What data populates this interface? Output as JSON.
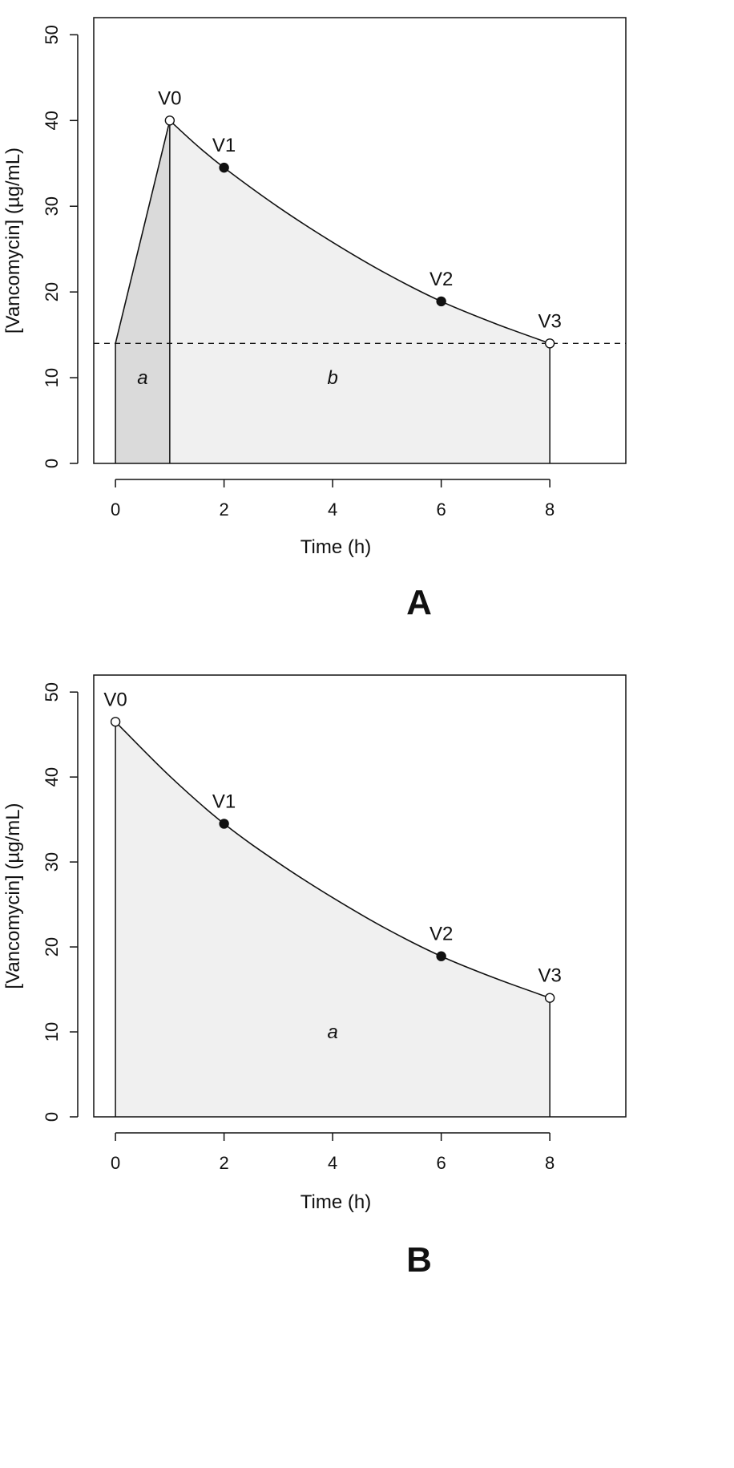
{
  "chart_data": [
    {
      "type": "area",
      "panel_label": "A",
      "xlabel": "Time (h)",
      "ylabel": "[Vancomycin] (µg/mL)",
      "xlim": [
        -0.4,
        9.4
      ],
      "ylim": [
        0,
        52
      ],
      "xticks": [
        0,
        2,
        4,
        6,
        8
      ],
      "yticks": [
        0,
        10,
        20,
        30,
        40,
        50
      ],
      "grid": false,
      "curve": {
        "x": [
          0,
          1,
          1.5,
          2,
          3,
          4,
          5,
          6,
          7,
          8
        ],
        "y": [
          14,
          40,
          37.1,
          34.5,
          29.9,
          25.8,
          22.1,
          18.9,
          16.3,
          14
        ]
      },
      "points": [
        {
          "label": "V0",
          "x": 1,
          "y": 40,
          "filled": false
        },
        {
          "label": "V1",
          "x": 2,
          "y": 34.5,
          "filled": true
        },
        {
          "label": "V2",
          "x": 6,
          "y": 18.9,
          "filled": true
        },
        {
          "label": "V3",
          "x": 8,
          "y": 14,
          "filled": false
        }
      ],
      "regions": [
        {
          "label": "a",
          "x_from": 0,
          "x_to": 1,
          "label_x": 0.5,
          "label_y": 10,
          "fill": "#dadada"
        },
        {
          "label": "b",
          "x_from": 1,
          "x_to": 8,
          "label_x": 4,
          "label_y": 10,
          "fill": "#f0f0f0"
        }
      ],
      "hline": {
        "y": 14,
        "style": "dashed"
      }
    },
    {
      "type": "area",
      "panel_label": "B",
      "xlabel": "Time (h)",
      "ylabel": "[Vancomycin] (µg/mL)",
      "xlim": [
        -0.4,
        9.4
      ],
      "ylim": [
        0,
        52
      ],
      "xticks": [
        0,
        2,
        4,
        6,
        8
      ],
      "yticks": [
        0,
        10,
        20,
        30,
        40,
        50
      ],
      "grid": false,
      "curve": {
        "x": [
          0,
          1,
          2,
          3,
          4,
          5,
          6,
          7,
          8
        ],
        "y": [
          46.5,
          40.1,
          34.5,
          29.9,
          25.8,
          22.1,
          18.9,
          16.3,
          14
        ]
      },
      "points": [
        {
          "label": "V0",
          "x": 0,
          "y": 46.5,
          "filled": false
        },
        {
          "label": "V1",
          "x": 2,
          "y": 34.5,
          "filled": true
        },
        {
          "label": "V2",
          "x": 6,
          "y": 18.9,
          "filled": true
        },
        {
          "label": "V3",
          "x": 8,
          "y": 14,
          "filled": false
        }
      ],
      "regions": [
        {
          "label": "a",
          "x_from": 0,
          "x_to": 8,
          "label_x": 4,
          "label_y": 10,
          "fill": "#f0f0f0"
        }
      ],
      "hline": null
    }
  ]
}
